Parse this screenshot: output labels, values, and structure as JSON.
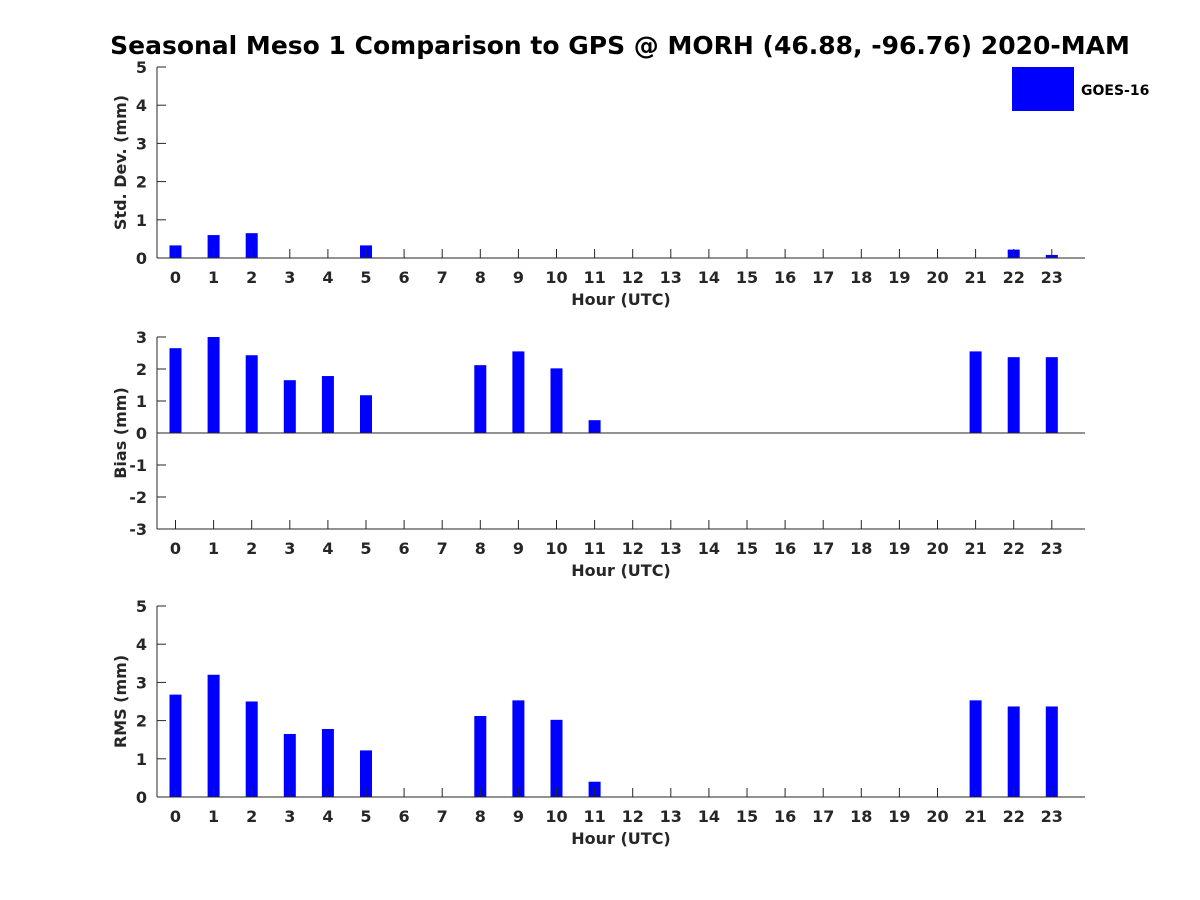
{
  "figure_title": "Seasonal Meso 1 Comparison to GPS @ MORH (46.88, -96.76) 2020-MAM",
  "legend": {
    "label": "GOES-16",
    "color": "#0000ff"
  },
  "chart_data": [
    {
      "type": "bar",
      "name": "std-dev",
      "title": "Seasonal Meso 1 Comparison to GPS @ MORH (46.88, -96.76) 2020-MAM",
      "xlabel": "Hour (UTC)",
      "ylabel": "Std. Dev. (mm)",
      "ylim": [
        0,
        5
      ],
      "yticks": [
        0,
        1,
        2,
        3,
        4,
        5
      ],
      "categories": [
        "0",
        "1",
        "2",
        "3",
        "4",
        "5",
        "6",
        "7",
        "8",
        "9",
        "10",
        "11",
        "12",
        "13",
        "14",
        "15",
        "16",
        "17",
        "18",
        "19",
        "20",
        "21",
        "22",
        "23"
      ],
      "series": [
        {
          "name": "GOES-16",
          "color": "#0000ff",
          "values": [
            0.33,
            0.6,
            0.65,
            0,
            0,
            0.33,
            0,
            0,
            0,
            0,
            0,
            0,
            0,
            0,
            0,
            0,
            0,
            0,
            0,
            0,
            0,
            0,
            0.22,
            0.08
          ]
        }
      ]
    },
    {
      "type": "bar",
      "name": "bias",
      "xlabel": "Hour (UTC)",
      "ylabel": "Bias (mm)",
      "ylim": [
        -3,
        3
      ],
      "yticks": [
        -3,
        -2,
        -1,
        0,
        1,
        2,
        3
      ],
      "categories": [
        "0",
        "1",
        "2",
        "3",
        "4",
        "5",
        "6",
        "7",
        "8",
        "9",
        "10",
        "11",
        "12",
        "13",
        "14",
        "15",
        "16",
        "17",
        "18",
        "19",
        "20",
        "21",
        "22",
        "23"
      ],
      "series": [
        {
          "name": "GOES-16",
          "color": "#0000ff",
          "values": [
            2.65,
            3.0,
            2.43,
            1.65,
            1.78,
            1.18,
            0,
            0,
            2.12,
            2.55,
            2.02,
            0.4,
            0,
            0,
            0,
            0,
            0,
            0,
            0,
            0,
            0,
            2.55,
            2.37,
            2.37
          ]
        }
      ]
    },
    {
      "type": "bar",
      "name": "rms",
      "xlabel": "Hour (UTC)",
      "ylabel": "RMS (mm)",
      "ylim": [
        0,
        5
      ],
      "yticks": [
        0,
        1,
        2,
        3,
        4,
        5
      ],
      "categories": [
        "0",
        "1",
        "2",
        "3",
        "4",
        "5",
        "6",
        "7",
        "8",
        "9",
        "10",
        "11",
        "12",
        "13",
        "14",
        "15",
        "16",
        "17",
        "18",
        "19",
        "20",
        "21",
        "22",
        "23"
      ],
      "series": [
        {
          "name": "GOES-16",
          "color": "#0000ff",
          "values": [
            2.68,
            3.2,
            2.5,
            1.65,
            1.78,
            1.22,
            0,
            0,
            2.12,
            2.53,
            2.02,
            0.4,
            0,
            0,
            0,
            0,
            0,
            0,
            0,
            0,
            0,
            2.53,
            2.37,
            2.37
          ]
        }
      ]
    }
  ]
}
